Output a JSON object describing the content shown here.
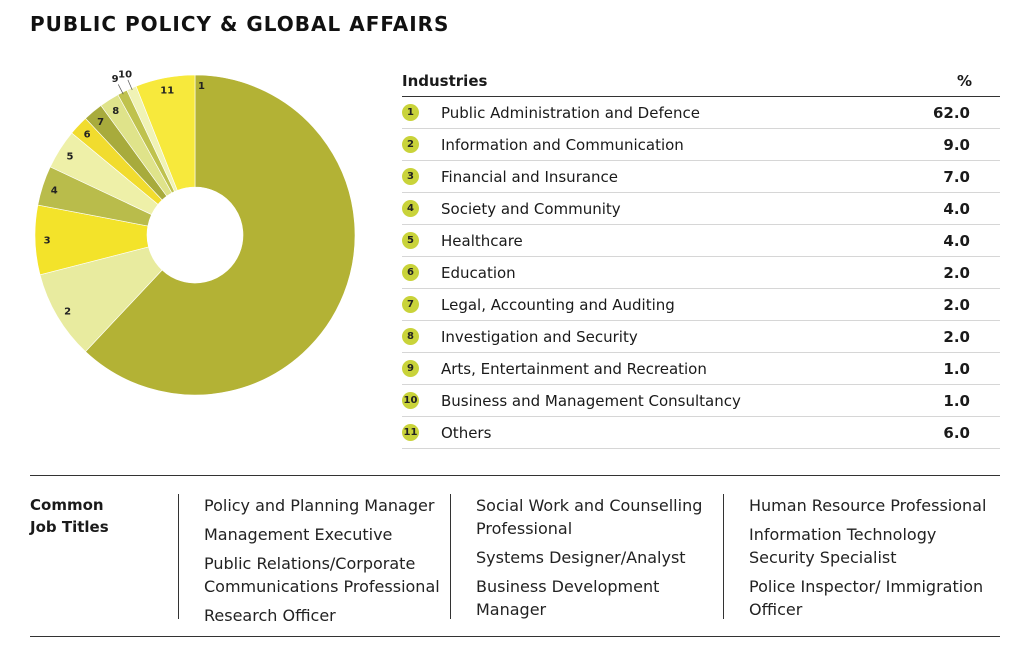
{
  "title": "PUBLIC POLICY & GLOBAL AFFAIRS",
  "table_headers": {
    "industries": "Industries",
    "percent": "%"
  },
  "chart_data": {
    "type": "pie",
    "categories": [
      "Public Administration and Defence",
      "Information and Communication",
      "Financial and Insurance",
      "Society and Community",
      "Healthcare",
      "Education",
      "Legal, Accounting and Auditing",
      "Investigation and Security",
      "Arts, Entertainment and Recreation",
      "Business and Management Consultancy",
      "Others"
    ],
    "slice_labels": [
      "1",
      "2",
      "3",
      "4",
      "5",
      "6",
      "7",
      "8",
      "9",
      "10",
      "11"
    ],
    "values": [
      62.0,
      9.0,
      7.0,
      4.0,
      4.0,
      2.0,
      2.0,
      2.0,
      1.0,
      1.0,
      6.0
    ],
    "value_labels": [
      "62.0",
      "9.0",
      "7.0",
      "4.0",
      "4.0",
      "2.0",
      "2.0",
      "2.0",
      "1.0",
      "1.0",
      "6.0"
    ],
    "colors": [
      "#b3b235",
      "#e8eb9f",
      "#f3e32a",
      "#b9bc4b",
      "#eef0a8",
      "#f1dc2e",
      "#a8ab3c",
      "#dfe38a",
      "#bfc24d",
      "#f0f3b5",
      "#f7e93c"
    ]
  },
  "job_titles": {
    "label": "Common Job Titles",
    "columns": [
      [
        "Policy and Planning Manager",
        "Management Executive",
        "Public Relations/Corporate Communications Professional",
        "Research Officer"
      ],
      [
        "Social Work and Counselling Professional",
        "Systems Designer/Analyst",
        "Business Development Manager"
      ],
      [
        "Human Resource Professional",
        "Information Technology Security Specialist",
        "Police Inspector/ Immigration Officer"
      ]
    ]
  }
}
